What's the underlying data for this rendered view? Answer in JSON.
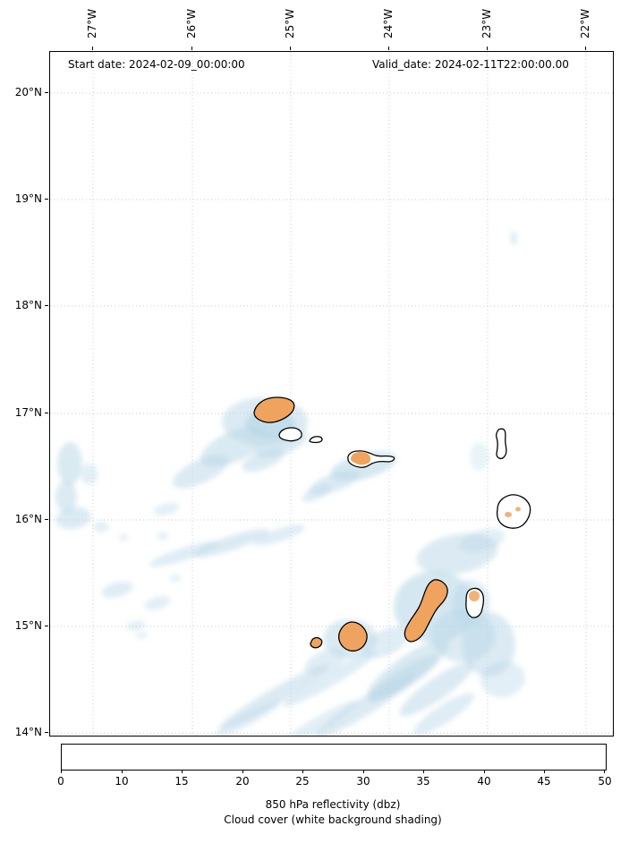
{
  "annotations": {
    "start_date": "Start date: 2024-02-09_00:00:00",
    "valid_date": "Valid_date: 2024-02-11T22:00:00.00"
  },
  "chart_data": {
    "type": "heatmap",
    "title": "",
    "description": "Geographic map of 850 hPa reflectivity over an island archipelago; island landmasses outlined in black with orange (~40 dbz) reflectivity fill, light blue cloud cover shading over ocean, dotted lat/lon graticule",
    "x_axis": {
      "tick_labels": [
        "27°W",
        "26°W",
        "25°W",
        "24°W",
        "23°W",
        "22°W"
      ],
      "approx_range": [
        -27.44,
        -21.72
      ],
      "grid": true
    },
    "y_axis": {
      "tick_labels": [
        "20°N",
        "19°N",
        "18°N",
        "17°N",
        "16°N",
        "15°N",
        "14°N"
      ],
      "approx_range": [
        13.98,
        20.39
      ],
      "grid": true
    },
    "annotations": [
      "Start date: 2024-02-09_00:00:00",
      "Valid_date: 2024-02-11T22:00:00.00"
    ],
    "colorbar": {
      "orientation": "horizontal",
      "tick_labels": [
        "0",
        "10",
        "15",
        "20",
        "25",
        "30",
        "35",
        "40",
        "45",
        "50"
      ],
      "segment_colors": [
        "#2878be",
        "#44bde5",
        "#5fdcd9",
        "#8beecb",
        "#adf2a0",
        "#cbee75",
        "#ecea4c",
        "#f3a93a",
        "#e5521e"
      ],
      "label_line1": "850 hPa reflectivity (dbz)",
      "label_line2": "Cloud cover (white background shading)"
    },
    "map_colors": {
      "cloud_shading": "#bcd9e8",
      "island_fill_orange": "#f0a35e",
      "island_fill_white": "#ffffff",
      "coastline": "#000000",
      "grid_color": "#c8c8c8"
    }
  }
}
